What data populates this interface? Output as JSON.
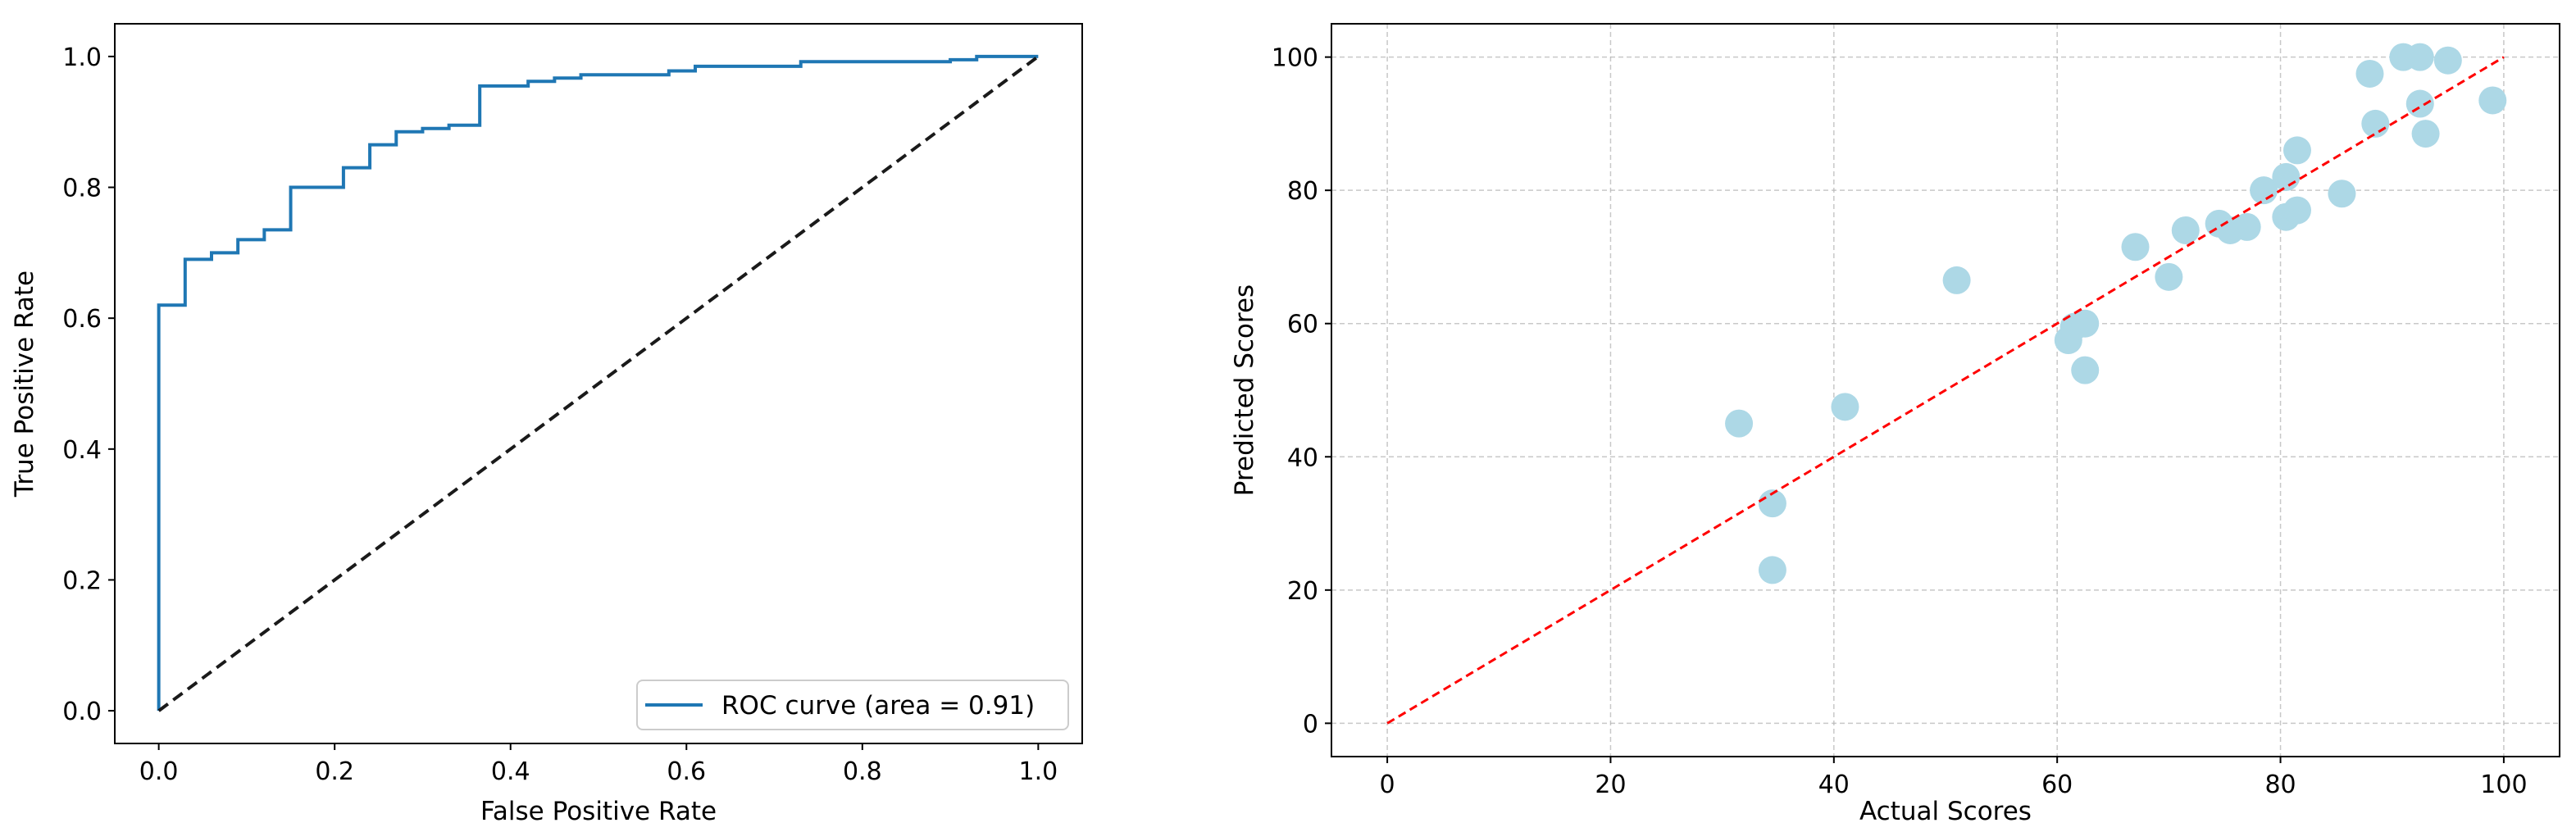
{
  "chart_data": [
    {
      "type": "line",
      "title": "",
      "xlabel": "False Positive Rate",
      "ylabel": "True Positive Rate",
      "xlim": [
        -0.05,
        1.05
      ],
      "ylim": [
        -0.05,
        1.05
      ],
      "xticks": [
        "0.0",
        "0.2",
        "0.4",
        "0.6",
        "0.8",
        "1.0"
      ],
      "yticks": [
        "0.0",
        "0.2",
        "0.4",
        "0.6",
        "0.8",
        "1.0"
      ],
      "grid": false,
      "legend": {
        "location": "lower-right",
        "entries": [
          "ROC curve (area = 0.91)"
        ]
      },
      "series": [
        {
          "name": "ROC curve (area = 0.91)",
          "color": "#1f77b4",
          "style": "step",
          "x": [
            0.0,
            0.0,
            0.03,
            0.03,
            0.06,
            0.06,
            0.09,
            0.09,
            0.12,
            0.12,
            0.15,
            0.15,
            0.21,
            0.21,
            0.24,
            0.24,
            0.27,
            0.27,
            0.3,
            0.3,
            0.33,
            0.33,
            0.365,
            0.365,
            0.42,
            0.42,
            0.45,
            0.45,
            0.48,
            0.48,
            0.58,
            0.58,
            0.61,
            0.61,
            0.73,
            0.73,
            0.9,
            0.9,
            0.93,
            0.93,
            1.0
          ],
          "y": [
            0.0,
            0.62,
            0.62,
            0.69,
            0.69,
            0.7,
            0.7,
            0.72,
            0.72,
            0.735,
            0.735,
            0.8,
            0.8,
            0.83,
            0.83,
            0.865,
            0.865,
            0.885,
            0.885,
            0.89,
            0.89,
            0.895,
            0.895,
            0.955,
            0.955,
            0.962,
            0.962,
            0.967,
            0.967,
            0.972,
            0.972,
            0.978,
            0.978,
            0.985,
            0.985,
            0.992,
            0.992,
            0.995,
            0.995,
            1.0,
            1.0
          ]
        },
        {
          "name": "",
          "color": "#1a1a1a",
          "style": "dashed",
          "x": [
            0.0,
            1.0
          ],
          "y": [
            0.0,
            1.0
          ]
        }
      ]
    },
    {
      "type": "scatter",
      "title": "",
      "xlabel": "Actual Scores",
      "ylabel": "Predicted Scores",
      "xlim": [
        -5,
        105
      ],
      "ylim": [
        -5,
        105
      ],
      "xticks": [
        "0",
        "20",
        "40",
        "60",
        "80",
        "100"
      ],
      "yticks": [
        "0",
        "20",
        "40",
        "60",
        "80",
        "100"
      ],
      "grid": true,
      "series": [
        {
          "name": "",
          "color": "#add8e6",
          "x": [
            31.5,
            34.5,
            34.5,
            41,
            51,
            61,
            61.5,
            62.5,
            62.5,
            67,
            70,
            71.5,
            74.5,
            75.5,
            77,
            78.5,
            80.5,
            80.5,
            81.5,
            81.5,
            85.5,
            88,
            88.5,
            91,
            92.5,
            92.5,
            93,
            95,
            99
          ],
          "y": [
            45,
            33,
            23,
            47.5,
            66.5,
            57.5,
            59.5,
            60,
            53,
            71.5,
            67,
            74,
            75,
            74,
            74.5,
            80,
            82,
            76,
            77,
            86,
            79.5,
            97.5,
            90,
            100,
            100,
            93,
            88.5,
            99.5,
            93.5
          ]
        },
        {
          "name": "",
          "color": "#ff0000",
          "style": "dashed",
          "x": [
            0,
            100
          ],
          "y": [
            0,
            100
          ]
        }
      ]
    }
  ]
}
